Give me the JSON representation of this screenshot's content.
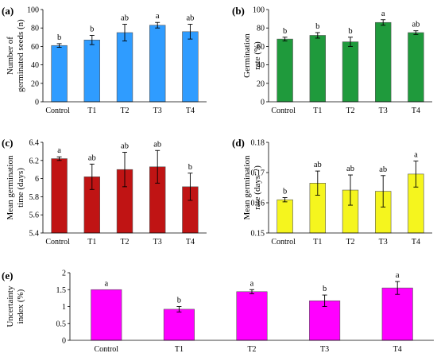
{
  "chart_data": [
    {
      "panel": "(a)",
      "type": "bar",
      "categories": [
        "Control",
        "T1",
        "T2",
        "T3",
        "T4"
      ],
      "values": [
        61,
        67,
        75,
        83,
        76
      ],
      "errors": [
        2,
        5,
        9,
        3,
        8
      ],
      "significance": [
        "b",
        "b",
        "ab",
        "a",
        "ab"
      ],
      "ylabel": [
        "Number of",
        "germinated seeds (n)"
      ],
      "ylim": [
        0,
        100
      ],
      "yticks": [
        "0",
        "20",
        "40",
        "60",
        "80",
        "100"
      ],
      "color": "#2f9cff"
    },
    {
      "panel": "(b)",
      "type": "bar",
      "categories": [
        "Control",
        "T1",
        "T2",
        "T3",
        "T4"
      ],
      "values": [
        68,
        72,
        65,
        86,
        75
      ],
      "errors": [
        2,
        3,
        5,
        3,
        2
      ],
      "significance": [
        "b",
        "b",
        "b",
        "a",
        "ab"
      ],
      "ylabel": [
        "Germination",
        "rate (%)"
      ],
      "ylim": [
        0,
        100
      ],
      "yticks": [
        "0",
        "20",
        "40",
        "60",
        "80",
        "100"
      ],
      "color": "#1f9a3c"
    },
    {
      "panel": "(c)",
      "type": "bar",
      "categories": [
        "Control",
        "T1",
        "T2",
        "T3",
        "T4"
      ],
      "values": [
        6.22,
        6.02,
        6.1,
        6.13,
        5.91
      ],
      "errors": [
        0.02,
        0.14,
        0.19,
        0.18,
        0.15
      ],
      "significance": [
        "a",
        "ab",
        "ab",
        "ab",
        "b"
      ],
      "ylabel": [
        "Mean germination",
        "time (days)"
      ],
      "ylim": [
        5.4,
        6.4
      ],
      "yticks": [
        "5.4",
        "5.6",
        "5.8",
        "6",
        "6.2",
        "6.4"
      ],
      "color": "#c01414"
    },
    {
      "panel": "(d)",
      "type": "bar",
      "categories": [
        "Control",
        "T1",
        "T2",
        "T3",
        "T4"
      ],
      "values": [
        0.161,
        0.1665,
        0.1642,
        0.1638,
        0.1695
      ],
      "errors": [
        0.0007,
        0.004,
        0.005,
        0.0052,
        0.0043
      ],
      "significance": [
        "b",
        "ab",
        "ab",
        "ab",
        "a"
      ],
      "ylabel": [
        "Mean germination",
        "rate (days⁻¹)"
      ],
      "ylim": [
        0.15,
        0.18
      ],
      "yticks": [
        "0.15",
        "0.16",
        "0.17",
        "0.18"
      ],
      "color": "#f5f51e"
    },
    {
      "panel": "(e)",
      "type": "bar",
      "categories": [
        "Control",
        "T1",
        "T2",
        "T3",
        "T4"
      ],
      "values": [
        1.5,
        0.92,
        1.44,
        1.17,
        1.55
      ],
      "errors": [
        0.0,
        0.08,
        0.06,
        0.17,
        0.19
      ],
      "significance": [
        "a",
        "b",
        "a",
        "b",
        "a"
      ],
      "ylabel": [
        "Uncertainty",
        "index (%)"
      ],
      "ylim": [
        0,
        2
      ],
      "yticks": [
        "0",
        "0.5",
        "1",
        "1.5",
        "2"
      ],
      "color": "#ff00ff"
    }
  ]
}
